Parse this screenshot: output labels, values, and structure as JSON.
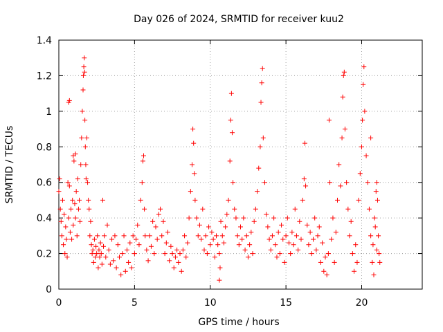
{
  "chart_data": {
    "type": "scatter",
    "title": "Day 026 of 2024, SRMTID for receiver kuu2",
    "xlabel": "GPS time / hours",
    "ylabel": "SRMTID / TECUs",
    "xlim": [
      0,
      24
    ],
    "ylim": [
      0,
      1.4
    ],
    "xticks": [
      0,
      5,
      10,
      15,
      20
    ],
    "yticks": [
      0,
      0.2,
      0.4,
      0.6,
      0.8,
      1,
      1.2,
      1.4
    ],
    "xtick_labels": [
      "0",
      "5",
      "10",
      "15",
      "20"
    ],
    "ytick_labels": [
      "0",
      "0.2",
      "0.4",
      "0.6",
      "0.8",
      "1",
      "1.2",
      "1.4"
    ],
    "grid": true,
    "marker": "+",
    "color": "#ff0000",
    "series": [
      {
        "name": "SRMTID",
        "points": [
          [
            0.0,
            0.55
          ],
          [
            0.05,
            0.62
          ],
          [
            0.1,
            0.45
          ],
          [
            0.15,
            0.38
          ],
          [
            0.2,
            0.3
          ],
          [
            0.25,
            0.5
          ],
          [
            0.3,
            0.25
          ],
          [
            0.35,
            0.42
          ],
          [
            0.4,
            0.2
          ],
          [
            0.45,
            0.35
          ],
          [
            0.5,
            0.28
          ],
          [
            0.55,
            0.18
          ],
          [
            0.6,
            0.6
          ],
          [
            0.65,
            0.4
          ],
          [
            0.7,
            0.58
          ],
          [
            0.75,
            0.32
          ],
          [
            0.8,
            0.45
          ],
          [
            0.85,
            0.28
          ],
          [
            0.9,
            0.5
          ],
          [
            0.95,
            0.36
          ],
          [
            1.0,
            0.72
          ],
          [
            1.05,
            0.48
          ],
          [
            1.1,
            0.4
          ],
          [
            1.15,
            0.55
          ],
          [
            1.2,
            0.3
          ],
          [
            1.25,
            0.62
          ],
          [
            1.3,
            0.45
          ],
          [
            1.35,
            0.5
          ],
          [
            1.4,
            0.38
          ],
          [
            1.45,
            0.7
          ],
          [
            0.65,
            1.05
          ],
          [
            0.7,
            1.06
          ],
          [
            0.95,
            0.75
          ],
          [
            1.1,
            0.76
          ],
          [
            1.5,
            0.85
          ],
          [
            1.55,
            1.0
          ],
          [
            1.6,
            1.12
          ],
          [
            1.62,
            1.2
          ],
          [
            1.65,
            1.25
          ],
          [
            1.68,
            1.3
          ],
          [
            1.7,
            1.22
          ],
          [
            1.72,
            0.95
          ],
          [
            1.75,
            0.8
          ],
          [
            1.78,
            0.7
          ],
          [
            1.8,
            0.62
          ],
          [
            1.85,
            0.85
          ],
          [
            1.9,
            0.6
          ],
          [
            1.95,
            0.5
          ],
          [
            2.0,
            0.45
          ],
          [
            2.05,
            0.3
          ],
          [
            2.1,
            0.38
          ],
          [
            2.15,
            0.25
          ],
          [
            2.2,
            0.2
          ],
          [
            2.25,
            0.22
          ],
          [
            2.3,
            0.15
          ],
          [
            2.35,
            0.28
          ],
          [
            2.4,
            0.18
          ],
          [
            2.45,
            0.24
          ],
          [
            2.5,
            0.2
          ],
          [
            2.55,
            0.3
          ],
          [
            2.6,
            0.12
          ],
          [
            2.65,
            0.22
          ],
          [
            2.7,
            0.18
          ],
          [
            2.75,
            0.26
          ],
          [
            2.8,
            0.2
          ],
          [
            2.85,
            0.14
          ],
          [
            2.9,
            0.5
          ],
          [
            2.95,
            0.24
          ],
          [
            3.0,
            0.3
          ],
          [
            3.1,
            0.18
          ],
          [
            3.2,
            0.36
          ],
          [
            3.3,
            0.22
          ],
          [
            3.4,
            0.14
          ],
          [
            3.5,
            0.28
          ],
          [
            3.6,
            0.16
          ],
          [
            3.7,
            0.3
          ],
          [
            3.8,
            0.12
          ],
          [
            3.9,
            0.25
          ],
          [
            4.0,
            0.18
          ],
          [
            4.1,
            0.08
          ],
          [
            4.2,
            0.2
          ],
          [
            4.3,
            0.3
          ],
          [
            4.4,
            0.1
          ],
          [
            4.5,
            0.22
          ],
          [
            4.6,
            0.15
          ],
          [
            4.7,
            0.26
          ],
          [
            4.8,
            0.12
          ],
          [
            4.9,
            0.3
          ],
          [
            5.0,
            0.2
          ],
          [
            5.1,
            0.28
          ],
          [
            5.2,
            0.36
          ],
          [
            5.3,
            0.25
          ],
          [
            5.4,
            0.5
          ],
          [
            5.5,
            0.6
          ],
          [
            5.55,
            0.72
          ],
          [
            5.6,
            0.75
          ],
          [
            5.65,
            0.45
          ],
          [
            5.7,
            0.3
          ],
          [
            5.8,
            0.22
          ],
          [
            5.9,
            0.16
          ],
          [
            6.0,
            0.3
          ],
          [
            6.1,
            0.24
          ],
          [
            6.2,
            0.38
          ],
          [
            6.3,
            0.2
          ],
          [
            6.4,
            0.35
          ],
          [
            6.5,
            0.28
          ],
          [
            6.6,
            0.42
          ],
          [
            6.7,
            0.45
          ],
          [
            6.8,
            0.3
          ],
          [
            6.9,
            0.38
          ],
          [
            7.0,
            0.2
          ],
          [
            7.1,
            0.26
          ],
          [
            7.2,
            0.32
          ],
          [
            7.3,
            0.16
          ],
          [
            7.4,
            0.24
          ],
          [
            7.5,
            0.2
          ],
          [
            7.6,
            0.12
          ],
          [
            7.7,
            0.18
          ],
          [
            7.8,
            0.22
          ],
          [
            7.9,
            0.15
          ],
          [
            8.0,
            0.2
          ],
          [
            8.1,
            0.1
          ],
          [
            8.2,
            0.22
          ],
          [
            8.3,
            0.3
          ],
          [
            8.4,
            0.18
          ],
          [
            8.5,
            0.26
          ],
          [
            8.6,
            0.4
          ],
          [
            8.7,
            0.55
          ],
          [
            8.8,
            0.7
          ],
          [
            8.85,
            0.9
          ],
          [
            8.9,
            0.82
          ],
          [
            8.95,
            0.65
          ],
          [
            9.0,
            0.5
          ],
          [
            9.1,
            0.4
          ],
          [
            9.2,
            0.3
          ],
          [
            9.3,
            0.36
          ],
          [
            9.4,
            0.28
          ],
          [
            9.5,
            0.45
          ],
          [
            9.6,
            0.22
          ],
          [
            9.7,
            0.3
          ],
          [
            9.8,
            0.2
          ],
          [
            9.9,
            0.35
          ],
          [
            10.0,
            0.25
          ],
          [
            10.1,
            0.32
          ],
          [
            10.2,
            0.28
          ],
          [
            10.3,
            0.18
          ],
          [
            10.4,
            0.3
          ],
          [
            10.5,
            0.25
          ],
          [
            10.6,
            0.2
          ],
          [
            10.7,
            0.38
          ],
          [
            10.8,
            0.3
          ],
          [
            10.9,
            0.26
          ],
          [
            11.0,
            0.35
          ],
          [
            11.1,
            0.42
          ],
          [
            11.2,
            0.5
          ],
          [
            11.3,
            0.72
          ],
          [
            11.35,
            0.95
          ],
          [
            11.4,
            1.1
          ],
          [
            11.45,
            0.88
          ],
          [
            11.5,
            0.6
          ],
          [
            11.6,
            0.45
          ],
          [
            11.7,
            0.4
          ],
          [
            11.8,
            0.3
          ],
          [
            11.9,
            0.25
          ],
          [
            10.6,
            0.05
          ],
          [
            10.65,
            0.12
          ],
          [
            12.0,
            0.35
          ],
          [
            12.1,
            0.28
          ],
          [
            12.2,
            0.4
          ],
          [
            12.3,
            0.22
          ],
          [
            12.4,
            0.3
          ],
          [
            12.5,
            0.18
          ],
          [
            12.6,
            0.25
          ],
          [
            12.7,
            0.32
          ],
          [
            12.8,
            0.2
          ],
          [
            12.9,
            0.38
          ],
          [
            13.0,
            0.45
          ],
          [
            13.1,
            0.55
          ],
          [
            13.2,
            0.68
          ],
          [
            13.3,
            0.8
          ],
          [
            13.35,
            1.05
          ],
          [
            13.4,
            1.16
          ],
          [
            13.45,
            1.24
          ],
          [
            13.5,
            0.85
          ],
          [
            13.6,
            0.6
          ],
          [
            13.7,
            0.42
          ],
          [
            13.8,
            0.35
          ],
          [
            13.9,
            0.28
          ],
          [
            14.0,
            0.22
          ],
          [
            14.1,
            0.3
          ],
          [
            14.2,
            0.4
          ],
          [
            14.3,
            0.25
          ],
          [
            14.4,
            0.18
          ],
          [
            14.5,
            0.32
          ],
          [
            14.6,
            0.2
          ],
          [
            14.7,
            0.36
          ],
          [
            14.8,
            0.28
          ],
          [
            14.9,
            0.15
          ],
          [
            15.0,
            0.3
          ],
          [
            15.1,
            0.4
          ],
          [
            15.2,
            0.26
          ],
          [
            15.3,
            0.2
          ],
          [
            15.4,
            0.32
          ],
          [
            15.5,
            0.25
          ],
          [
            15.6,
            0.45
          ],
          [
            15.7,
            0.3
          ],
          [
            15.8,
            0.22
          ],
          [
            15.9,
            0.38
          ],
          [
            16.0,
            0.28
          ],
          [
            16.1,
            0.5
          ],
          [
            16.2,
            0.62
          ],
          [
            16.25,
            0.82
          ],
          [
            16.3,
            0.58
          ],
          [
            16.4,
            0.36
          ],
          [
            16.5,
            0.25
          ],
          [
            16.6,
            0.32
          ],
          [
            16.7,
            0.2
          ],
          [
            16.8,
            0.28
          ],
          [
            16.9,
            0.4
          ],
          [
            17.0,
            0.22
          ],
          [
            17.1,
            0.3
          ],
          [
            17.2,
            0.35
          ],
          [
            17.3,
            0.15
          ],
          [
            17.4,
            0.26
          ],
          [
            17.5,
            0.1
          ],
          [
            17.6,
            0.18
          ],
          [
            17.7,
            0.08
          ],
          [
            17.8,
            0.2
          ],
          [
            17.85,
            0.95
          ],
          [
            17.9,
            0.6
          ],
          [
            18.0,
            0.28
          ],
          [
            18.1,
            0.4
          ],
          [
            18.2,
            0.15
          ],
          [
            18.3,
            0.32
          ],
          [
            18.4,
            0.5
          ],
          [
            18.5,
            0.7
          ],
          [
            18.6,
            0.58
          ],
          [
            18.7,
            0.85
          ],
          [
            18.75,
            1.08
          ],
          [
            18.8,
            1.2
          ],
          [
            18.85,
            1.22
          ],
          [
            18.9,
            0.9
          ],
          [
            19.0,
            0.6
          ],
          [
            19.1,
            0.45
          ],
          [
            19.2,
            0.3
          ],
          [
            19.3,
            0.38
          ],
          [
            19.4,
            0.2
          ],
          [
            19.5,
            0.1
          ],
          [
            19.6,
            0.25
          ],
          [
            19.7,
            0.15
          ],
          [
            19.8,
            0.5
          ],
          [
            19.9,
            0.65
          ],
          [
            20.0,
            0.8
          ],
          [
            20.05,
            0.95
          ],
          [
            20.1,
            1.15
          ],
          [
            20.15,
            1.25
          ],
          [
            20.2,
            1.0
          ],
          [
            20.3,
            0.75
          ],
          [
            20.4,
            0.6
          ],
          [
            20.5,
            0.45
          ],
          [
            20.6,
            0.3
          ],
          [
            20.7,
            0.15
          ],
          [
            20.8,
            0.08
          ],
          [
            20.9,
            0.35
          ],
          [
            21.0,
            0.6
          ],
          [
            21.05,
            0.5
          ],
          [
            21.1,
            0.3
          ],
          [
            21.15,
            0.2
          ],
          [
            21.2,
            0.15
          ],
          [
            20.75,
            0.25
          ],
          [
            20.85,
            0.4
          ],
          [
            20.95,
            0.55
          ],
          [
            21.0,
            0.22
          ],
          [
            20.6,
            0.85
          ]
        ]
      }
    ]
  }
}
